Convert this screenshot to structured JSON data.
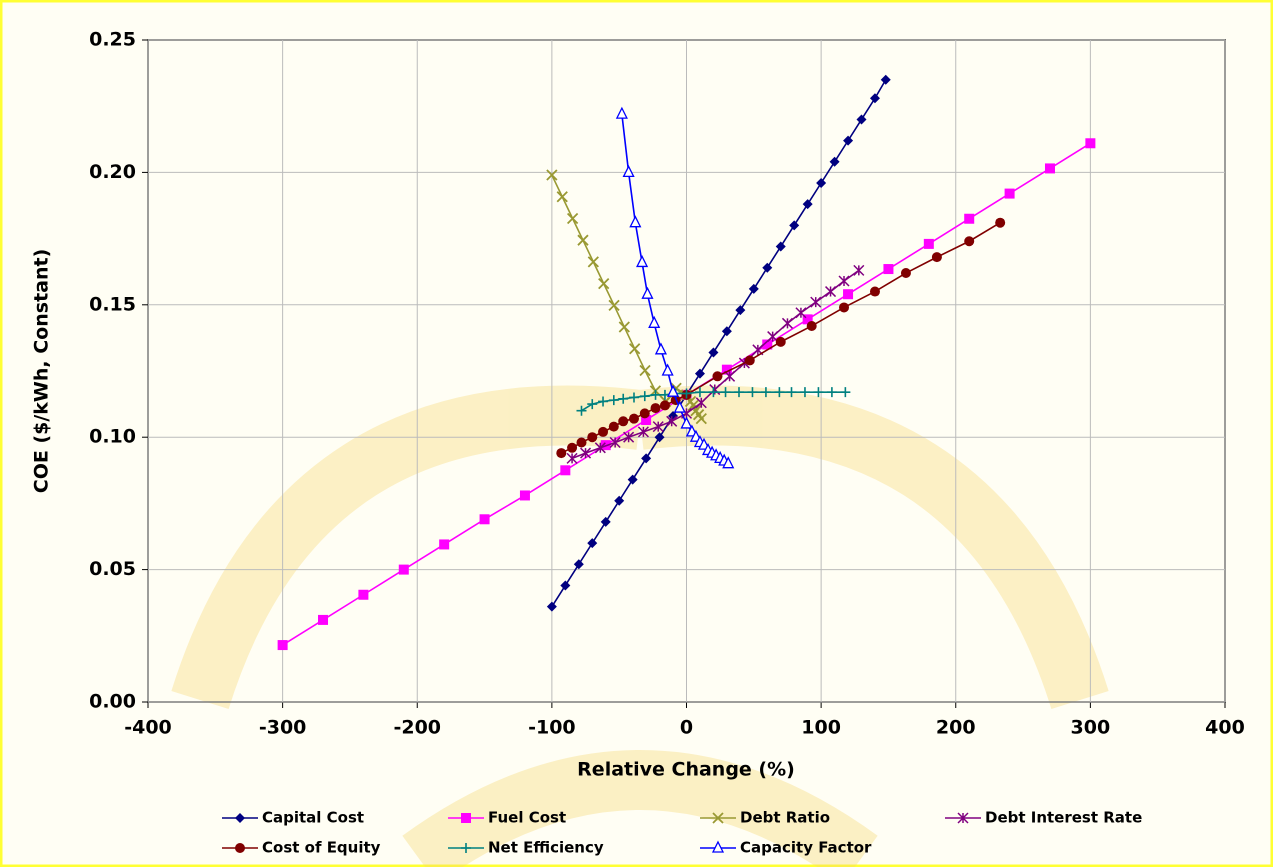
{
  "chart_data": {
    "type": "line",
    "x_label": "Relative Change (%)",
    "y_label": "COE ($/kWh, Constant)",
    "xlim": [
      -400,
      400
    ],
    "xticks": [
      -400,
      -300,
      -200,
      -100,
      0,
      100,
      200,
      300,
      400
    ],
    "ylim": [
      0,
      0.25
    ],
    "yticks": [
      {
        "value": 0,
        "label": "0.00"
      },
      {
        "value": 0.05,
        "label": "0.05"
      },
      {
        "value": 0.1,
        "label": "0.10"
      },
      {
        "value": 0.15,
        "label": "0.15"
      },
      {
        "value": 0.2,
        "label": "0.20"
      },
      {
        "value": 0.25,
        "label": "0.25"
      }
    ],
    "grid": true,
    "series": [
      {
        "name": "Capital Cost",
        "color": "#000080",
        "marker": "diamond",
        "x": [
          -100,
          -90,
          -80,
          -70,
          -60,
          -50,
          -40,
          -30,
          -20,
          -10,
          0,
          10,
          20,
          30,
          40,
          50,
          60,
          70,
          80,
          90,
          100,
          110,
          120,
          130,
          140,
          148
        ],
        "values": [
          0.036,
          0.044,
          0.052,
          0.06,
          0.068,
          0.076,
          0.084,
          0.092,
          0.1,
          0.108,
          0.116,
          0.124,
          0.132,
          0.14,
          0.148,
          0.156,
          0.164,
          0.172,
          0.18,
          0.188,
          0.196,
          0.204,
          0.212,
          0.22,
          0.228,
          0.235
        ]
      },
      {
        "name": "Fuel Cost",
        "color": "#ff00ff",
        "marker": "square",
        "x": [
          -300,
          -270,
          -240,
          -210,
          -180,
          -150,
          -120,
          -90,
          -60,
          -30,
          0,
          30,
          60,
          90,
          120,
          150,
          180,
          210,
          240,
          270,
          300
        ],
        "values": [
          0.0215,
          0.031,
          0.0405,
          0.05,
          0.0595,
          0.069,
          0.078,
          0.0875,
          0.097,
          0.1065,
          0.116,
          0.1255,
          0.135,
          0.1445,
          0.154,
          0.1635,
          0.173,
          0.1825,
          0.192,
          0.2015,
          0.211
        ]
      },
      {
        "name": "Debt Ratio",
        "color": "#999933",
        "marker": "x",
        "x": [
          -100,
          -92.3,
          -84.6,
          -76.9,
          -69.2,
          -61.5,
          -53.8,
          -46.2,
          -38.5,
          -30.8,
          -23.1,
          -15.4,
          -7.7,
          0,
          3,
          5,
          7,
          9,
          11
        ],
        "values": [
          0.199,
          0.1908,
          0.1826,
          0.1744,
          0.1662,
          0.158,
          0.1498,
          0.1416,
          0.1334,
          0.1252,
          0.1175,
          0.1135,
          0.1185,
          0.116,
          0.1135,
          0.112,
          0.11,
          0.1085,
          0.107
        ]
      },
      {
        "name": "Debt Interest Rate",
        "color": "#800080",
        "marker": "star",
        "x": [
          -85,
          -75,
          -64,
          -53,
          -43,
          -32,
          -21,
          -11,
          0,
          11,
          21,
          32,
          43,
          53,
          64,
          75,
          85,
          96,
          107,
          117,
          128
        ],
        "values": [
          0.092,
          0.094,
          0.096,
          0.098,
          0.1,
          0.102,
          0.104,
          0.106,
          0.109,
          0.113,
          0.118,
          0.123,
          0.128,
          0.133,
          0.138,
          0.143,
          0.147,
          0.151,
          0.155,
          0.159,
          0.163
        ]
      },
      {
        "name": "Cost of Equity",
        "color": "#800000",
        "marker": "circle",
        "x": [
          -93,
          -85,
          -78,
          -70,
          -62,
          -54,
          -47,
          -39,
          -31,
          -23,
          -16,
          -8,
          0,
          23,
          47,
          70,
          93,
          117,
          140,
          163,
          186,
          210,
          233
        ],
        "values": [
          0.094,
          0.096,
          0.098,
          0.1,
          0.102,
          0.104,
          0.106,
          0.107,
          0.109,
          0.111,
          0.112,
          0.114,
          0.116,
          0.123,
          0.129,
          0.136,
          0.142,
          0.149,
          0.155,
          0.162,
          0.168,
          0.174,
          0.181
        ]
      },
      {
        "name": "Net Efficiency",
        "color": "#008080",
        "marker": "plus",
        "x": [
          -78,
          -70,
          -62,
          -54,
          -47,
          -39,
          -31,
          -23,
          -16,
          -8,
          0,
          10,
          20,
          29,
          39,
          49,
          59,
          69,
          78,
          88,
          98,
          108,
          118
        ],
        "values": [
          0.11,
          0.1125,
          0.1135,
          0.114,
          0.1145,
          0.115,
          0.1155,
          0.116,
          0.116,
          0.1165,
          0.1165,
          0.117,
          0.117,
          0.117,
          0.117,
          0.117,
          0.117,
          0.117,
          0.117,
          0.117,
          0.117,
          0.117,
          0.117
        ]
      },
      {
        "name": "Capacity Factor",
        "color": "#0000ff",
        "marker": "triangle",
        "x": [
          -48,
          -43,
          -38,
          -33,
          -29,
          -24,
          -19,
          -14,
          -10,
          -5,
          0,
          4,
          7,
          10,
          13,
          16,
          19,
          22,
          25,
          28,
          31
        ],
        "values": [
          0.222,
          0.2,
          0.181,
          0.166,
          0.154,
          0.143,
          0.133,
          0.125,
          0.117,
          0.111,
          0.105,
          0.102,
          0.1,
          0.098,
          0.097,
          0.095,
          0.094,
          0.093,
          0.092,
          0.091,
          0.09
        ]
      }
    ]
  }
}
